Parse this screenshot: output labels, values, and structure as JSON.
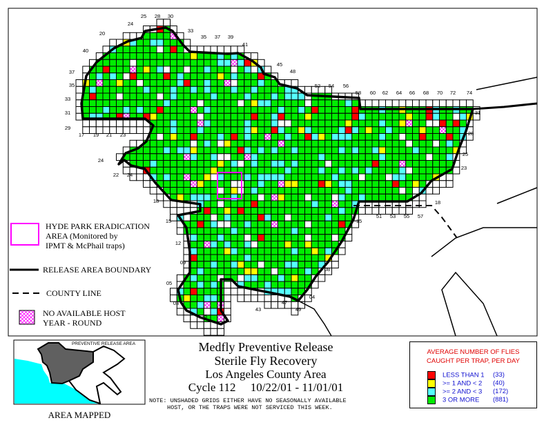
{
  "title": {
    "line1": "Medfly Preventive Release",
    "line2": "Sterile Fly Recovery",
    "line3": "Los Angeles County Area",
    "cycle": "Cycle 112",
    "dates": "10/22/01 - 11/01/01",
    "note_line1": "NOTE: UNSHADED GRIDS EITHER HAVE NO SEASONALLY AVAILABLE",
    "note_line2": "HOST, OR THE TRAPS WERE NOT SERVICED THIS WEEK."
  },
  "map_legend": {
    "hyde_park_line1": "HYDE PARK ERADICATION",
    "hyde_park_line2": "AREA (Monitored by",
    "hyde_park_line3": "IPMT & McPhail traps)",
    "release_boundary": "RELEASE AREA BOUNDARY",
    "county_line": "COUNTY LINE",
    "no_host_line1": "NO AVAILABLE HOST",
    "no_host_line2": "YEAR - ROUND"
  },
  "inset": {
    "label": "PREVENTIVE RELEASE AREA",
    "caption": "AREA MAPPED"
  },
  "fly_legend": {
    "heading_line1": "AVERAGE NUMBER OF FLIES",
    "heading_line2": "CAUGHT PER TRAP, PER DAY",
    "items": [
      {
        "label": "LESS THAN 1",
        "count": "(33)",
        "color": "#ff0000"
      },
      {
        "label": ">= 1 AND < 2",
        "count": "(40)",
        "color": "#ffff00"
      },
      {
        "label": ">= 2 AND < 3",
        "count": "(172)",
        "color": "#55ffff"
      },
      {
        "label": "3 OR MORE",
        "count": "(881)",
        "color": "#00ee00"
      }
    ]
  },
  "colors": {
    "hatch": "#ff00ff",
    "hyde_park": "#ff00ff",
    "boundary": "#000000",
    "ocean": "#00ffff",
    "release_area": "#606060"
  },
  "grid_labels": [
    "25",
    "28",
    "30",
    "24",
    "20",
    "33",
    "35",
    "37",
    "39",
    "41",
    "40",
    "45",
    "48",
    "37",
    "35",
    "33",
    "31",
    "29",
    "17",
    "19",
    "21",
    "23",
    "24",
    "22",
    "24",
    "52",
    "54",
    "56",
    "58",
    "60",
    "62",
    "64",
    "66",
    "68",
    "70",
    "72",
    "74",
    "31",
    "28",
    "25",
    "23",
    "18",
    "51",
    "53",
    "55",
    "57",
    "15",
    "18",
    "15",
    "12",
    "09",
    "08",
    "05",
    "03",
    "35",
    "43",
    "47",
    "49",
    "04"
  ]
}
